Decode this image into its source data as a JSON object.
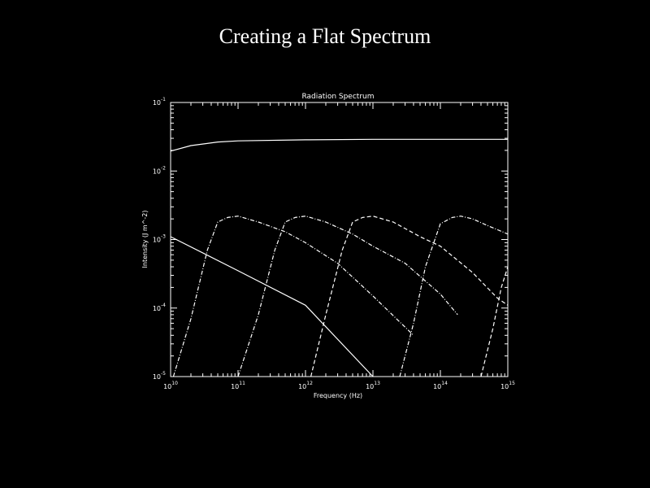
{
  "page": {
    "title": "Creating a Flat Spectrum"
  },
  "chart_data": {
    "type": "line",
    "title": "Radiation Spectrum",
    "xlabel": "Frequency (Hz)",
    "ylabel": "Intensity (J m^-2)",
    "x_scale": "log",
    "y_scale": "log",
    "xlim": [
      10000000000.0,
      1000000000000000.0
    ],
    "ylim": [
      1e-05,
      0.1
    ],
    "x_ticks": [
      {
        "value": 10000000000.0,
        "base": "10",
        "exp": "10"
      },
      {
        "value": 100000000000.0,
        "base": "10",
        "exp": "11"
      },
      {
        "value": 1000000000000.0,
        "base": "10",
        "exp": "12"
      },
      {
        "value": 10000000000000.0,
        "base": "10",
        "exp": "13"
      },
      {
        "value": 100000000000000.0,
        "base": "10",
        "exp": "14"
      },
      {
        "value": 1000000000000000.0,
        "base": "10",
        "exp": "15"
      }
    ],
    "y_ticks": [
      {
        "value": 1e-05,
        "base": "10",
        "exp": "-5"
      },
      {
        "value": 0.0001,
        "base": "10",
        "exp": "-4"
      },
      {
        "value": 0.001,
        "base": "10",
        "exp": "-3"
      },
      {
        "value": 0.01,
        "base": "10",
        "exp": "-2"
      },
      {
        "value": 0.1,
        "base": "10",
        "exp": "-1"
      }
    ],
    "series": [
      {
        "style": "solid",
        "x": [
          10000000000.0,
          20000000000.0,
          50000000000.0,
          100000000000.0,
          1000000000000.0,
          10000000000000.0,
          100000000000000.0,
          1000000000000000.0
        ],
        "y": [
          0.0195,
          0.0235,
          0.0265,
          0.0275,
          0.0285,
          0.029,
          0.029,
          0.029
        ]
      },
      {
        "style": "solid",
        "x": [
          10000000000.0,
          100000000000.0,
          1000000000000.0,
          10000000000000.0
        ],
        "y": [
          0.0011,
          0.00035,
          0.00011,
          1e-05
        ]
      },
      {
        "style": "dash-dot",
        "x": [
          11000000000.0,
          20000000000.0,
          35000000000.0,
          50000000000.0,
          70000000000.0,
          100000000000.0,
          200000000000.0,
          500000000000.0,
          1000000000000.0,
          3000000000000.0,
          10000000000000.0,
          40000000000000.0
        ],
        "y": [
          1e-05,
          7e-05,
          0.0007,
          0.0018,
          0.0021,
          0.0022,
          0.0018,
          0.0013,
          0.0009,
          0.00045,
          0.00015,
          4e-05
        ]
      },
      {
        "style": "dash-dot",
        "x": [
          100000000000.0,
          200000000000.0,
          350000000000.0,
          500000000000.0,
          700000000000.0,
          1000000000000.0,
          2000000000000.0,
          5000000000000.0,
          10000000000000.0,
          30000000000000.0,
          100000000000000.0,
          180000000000000.0
        ],
        "y": [
          1e-05,
          8e-05,
          0.0007,
          0.0018,
          0.0021,
          0.0022,
          0.0018,
          0.0012,
          0.0008,
          0.00045,
          0.00016,
          8e-05
        ]
      },
      {
        "style": "dashed",
        "x": [
          1200000000000.0,
          2000000000000.0,
          3500000000000.0,
          5000000000000.0,
          7000000000000.0,
          10000000000000.0,
          20000000000000.0,
          50000000000000.0,
          100000000000000.0,
          300000000000000.0,
          700000000000000.0,
          1000000000000000.0
        ],
        "y": [
          1e-05,
          8e-05,
          0.0007,
          0.0018,
          0.0021,
          0.0022,
          0.0018,
          0.0011,
          0.0008,
          0.00033,
          0.00014,
          0.00011
        ]
      },
      {
        "style": "dash-dot",
        "x": [
          25000000000000.0,
          40000000000000.0,
          60000000000000.0,
          100000000000000.0,
          150000000000000.0,
          200000000000000.0,
          300000000000000.0,
          500000000000000.0,
          1000000000000000.0
        ],
        "y": [
          1e-05,
          6e-05,
          0.0004,
          0.0017,
          0.0021,
          0.0022,
          0.002,
          0.0016,
          0.0012
        ]
      },
      {
        "style": "dashed",
        "x": [
          400000000000000.0,
          600000000000000.0,
          800000000000000.0,
          1000000000000000.0
        ],
        "y": [
          1e-05,
          5e-05,
          0.0002,
          0.0004
        ]
      }
    ]
  }
}
